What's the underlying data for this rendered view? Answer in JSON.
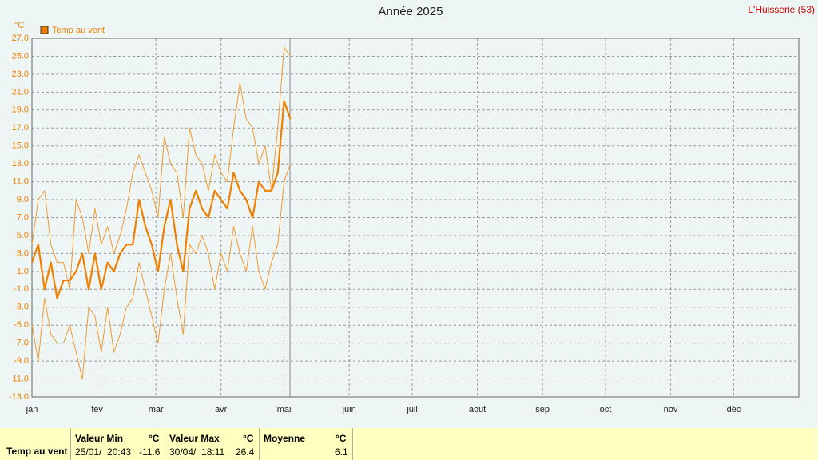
{
  "chart_data": {
    "type": "line",
    "title": "Année 2025",
    "location": "L'Huisserie (53)",
    "y_unit": "°C",
    "x": [
      0,
      3,
      6,
      9,
      12,
      15,
      18,
      21,
      24,
      27,
      30,
      33,
      36,
      39,
      42,
      45,
      48,
      51,
      54,
      57,
      60,
      63,
      66,
      69,
      72,
      75,
      78,
      81,
      84,
      87,
      90,
      93,
      96,
      99,
      102,
      105,
      108,
      111,
      114,
      117,
      120,
      123
    ],
    "series": [
      {
        "name": "Temp au vent",
        "color": "#f08000",
        "values": [
          2,
          4,
          -1,
          2,
          -2,
          0,
          0,
          1,
          3,
          -1,
          3,
          -1,
          2,
          1,
          3,
          4,
          4,
          9,
          6,
          4,
          1,
          6,
          9,
          4,
          1,
          8,
          10,
          8,
          7,
          10,
          9,
          8,
          12,
          10,
          9,
          7,
          11,
          10,
          10,
          12,
          20,
          18
        ]
      },
      {
        "color": "#f09a30",
        "values": [
          4,
          9,
          10,
          4,
          2,
          2,
          -1,
          9,
          7,
          3,
          8,
          4,
          6,
          3,
          5,
          8,
          12,
          14,
          12,
          10,
          7,
          16,
          13,
          12,
          7,
          17,
          14,
          13,
          10,
          14,
          12,
          11,
          17,
          22,
          18,
          17,
          13,
          15,
          10,
          17,
          26,
          25
        ]
      },
      {
        "color": "#f09a30",
        "values": [
          -5,
          -9,
          -2,
          -6,
          -7,
          -7,
          -5,
          -8,
          -11,
          -3,
          -4,
          -8,
          -3,
          -8,
          -6,
          -3,
          -2,
          2,
          -1,
          -4,
          -7,
          -1,
          3,
          -2,
          -6,
          4,
          3,
          5,
          3,
          -1,
          3,
          1,
          6,
          3,
          1,
          6,
          1,
          -1,
          2,
          4,
          11,
          13
        ]
      }
    ],
    "xlim": [
      0,
      365
    ],
    "xticks": [
      {
        "value": 0,
        "label": "jan"
      },
      {
        "value": 31,
        "label": "fév"
      },
      {
        "value": 59,
        "label": "mar"
      },
      {
        "value": 90,
        "label": "avr"
      },
      {
        "value": 120,
        "label": "mai"
      },
      {
        "value": 151,
        "label": "juin"
      },
      {
        "value": 181,
        "label": "juil"
      },
      {
        "value": 212,
        "label": "août"
      },
      {
        "value": 243,
        "label": "sep"
      },
      {
        "value": 273,
        "label": "oct"
      },
      {
        "value": 304,
        "label": "nov"
      },
      {
        "value": 334,
        "label": "déc"
      }
    ],
    "ylim": [
      -13,
      27
    ],
    "yticks": [
      {
        "value": -13,
        "label": "-13.0"
      },
      {
        "value": -11,
        "label": "-11.0"
      },
      {
        "value": -9,
        "label": "-9.0"
      },
      {
        "value": -7,
        "label": "-7.0"
      },
      {
        "value": -5,
        "label": "-5.0"
      },
      {
        "value": -3,
        "label": "-3.0"
      },
      {
        "value": -1,
        "label": "-1.0"
      },
      {
        "value": 1,
        "label": "1.0"
      },
      {
        "value": 3,
        "label": "3.0"
      },
      {
        "value": 5,
        "label": "5.0"
      },
      {
        "value": 7,
        "label": "7.0"
      },
      {
        "value": 9,
        "label": "9.0"
      },
      {
        "value": 11,
        "label": "11.0"
      },
      {
        "value": 13,
        "label": "13.0"
      },
      {
        "value": 15,
        "label": "15.0"
      },
      {
        "value": 17,
        "label": "17.0"
      },
      {
        "value": 19,
        "label": "19.0"
      },
      {
        "value": 21,
        "label": "21.0"
      },
      {
        "value": 23,
        "label": "23.0"
      },
      {
        "value": 25,
        "label": "25.0"
      },
      {
        "value": 27,
        "label": "27.0"
      }
    ],
    "grid": true
  },
  "summary": {
    "row_label": "Temp au vent",
    "min": {
      "header": "Valeur Min",
      "unit": "°C",
      "date": "25/01/  20:43",
      "value": "-11.6"
    },
    "max": {
      "header": "Valeur Max",
      "unit": "°C",
      "date": "30/04/  18:11",
      "value": "26.4"
    },
    "mean": {
      "header": "Moyenne",
      "unit": "°C",
      "value": "6.1"
    }
  }
}
